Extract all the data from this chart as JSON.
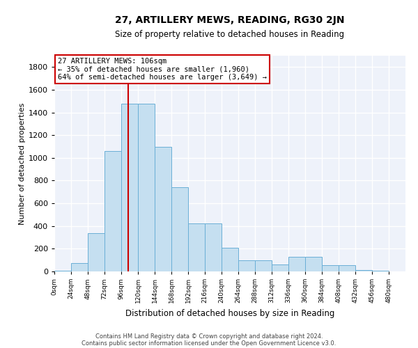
{
  "title": "27, ARTILLERY MEWS, READING, RG30 2JN",
  "subtitle": "Size of property relative to detached houses in Reading",
  "xlabel": "Distribution of detached houses by size in Reading",
  "ylabel": "Number of detached properties",
  "bar_color": "#c5dff0",
  "bar_edge_color": "#6aafd6",
  "background_color": "#eef2fa",
  "grid_color": "#ffffff",
  "annotation_text": "27 ARTILLERY MEWS: 106sqm\n← 35% of detached houses are smaller (1,960)\n64% of semi-detached houses are larger (3,649) →",
  "footnote1": "Contains HM Land Registry data © Crown copyright and database right 2024.",
  "footnote2": "Contains public sector information licensed under the Open Government Licence v3.0.",
  "bin_labels": [
    "0sqm",
    "24sqm",
    "48sqm",
    "72sqm",
    "96sqm",
    "120sqm",
    "144sqm",
    "168sqm",
    "192sqm",
    "216sqm",
    "240sqm",
    "264sqm",
    "288sqm",
    "312sqm",
    "336sqm",
    "360sqm",
    "384sqm",
    "408sqm",
    "432sqm",
    "456sqm",
    "480sqm"
  ],
  "bar_heights": [
    5,
    75,
    340,
    1060,
    1480,
    1480,
    1100,
    740,
    420,
    420,
    210,
    100,
    100,
    60,
    130,
    130,
    55,
    55,
    10,
    5,
    0
  ],
  "ylim": [
    0,
    1900
  ],
  "yticks": [
    0,
    200,
    400,
    600,
    800,
    1000,
    1200,
    1400,
    1600,
    1800
  ],
  "vline_color": "#cc0000",
  "vline_pos": 4.42
}
